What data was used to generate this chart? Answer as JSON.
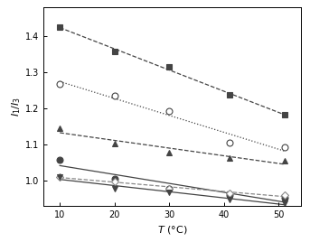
{
  "title": "",
  "xlabel": "T (°C)",
  "ylabel": "I$_1$/I$_3$",
  "xlim": [
    7,
    54
  ],
  "ylim": [
    0.93,
    1.48
  ],
  "xticks": [
    10,
    20,
    30,
    40,
    50
  ],
  "yticks": [
    1.0,
    1.1,
    1.2,
    1.3,
    1.4
  ],
  "series": [
    {
      "name": "filled_square",
      "x": [
        10,
        20,
        30,
        41,
        51
      ],
      "y": [
        1.425,
        1.358,
        1.315,
        1.237,
        1.183
      ],
      "marker": "s",
      "filled": true,
      "linestyle": "--",
      "color": "#444444",
      "markersize": 5
    },
    {
      "name": "open_circle_top",
      "x": [
        10,
        20,
        30,
        41,
        51
      ],
      "y": [
        1.268,
        1.235,
        1.192,
        1.105,
        1.092
      ],
      "marker": "o",
      "filled": false,
      "linestyle": ":",
      "color": "#444444",
      "markersize": 5
    },
    {
      "name": "filled_triangle",
      "x": [
        10,
        20,
        30,
        41,
        51
      ],
      "y": [
        1.145,
        1.103,
        1.078,
        1.063,
        1.055
      ],
      "marker": "^",
      "filled": true,
      "linestyle": "--",
      "color": "#444444",
      "markersize": 5
    },
    {
      "name": "filled_circle",
      "x": [
        10,
        20,
        30,
        41,
        51
      ],
      "y": [
        1.058,
        1.005,
        0.978,
        0.96,
        0.953
      ],
      "marker": "o",
      "filled": true,
      "linestyle": "-",
      "color": "#444444",
      "markersize": 5
    },
    {
      "name": "open_diamond",
      "x": [
        10,
        20,
        30,
        41,
        51
      ],
      "y": [
        1.01,
        0.998,
        0.976,
        0.965,
        0.96
      ],
      "marker": "D",
      "filled": false,
      "linestyle": "--",
      "color": "#888888",
      "markersize": 4.5
    },
    {
      "name": "filled_inverted_triangle",
      "x": [
        10,
        20,
        30,
        41,
        51
      ],
      "y": [
        1.01,
        0.978,
        0.968,
        0.946,
        0.938
      ],
      "marker": "v",
      "filled": true,
      "linestyle": "-",
      "color": "#444444",
      "markersize": 5
    }
  ],
  "background_color": "#ffffff",
  "figsize": [
    3.43,
    2.68
  ],
  "dpi": 100
}
